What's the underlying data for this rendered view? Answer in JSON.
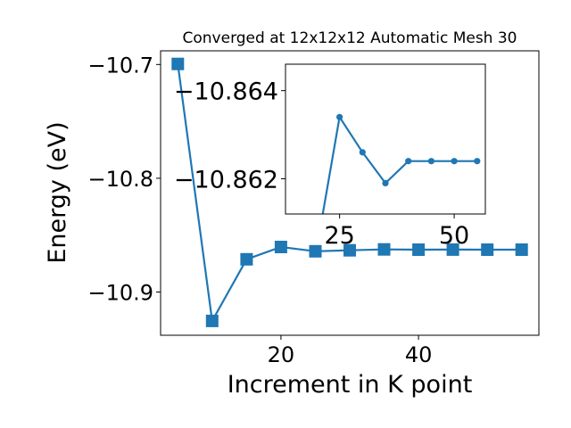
{
  "chart_data": [
    {
      "type": "line",
      "title": "Converged at 12x12x12 Automatic Mesh 30",
      "xlabel": "Increment in K point",
      "ylabel": "Energy (eV)",
      "xlim": [
        2.5,
        57.5
      ],
      "ylim": [
        -10.938,
        -10.688
      ],
      "xticks": [
        20,
        40
      ],
      "xtick_labels": [
        "20",
        "40"
      ],
      "yticks": [
        -10.9,
        -10.8,
        -10.7
      ],
      "ytick_labels": [
        "−10.9",
        "−10.8",
        "−10.7"
      ],
      "marker": "square",
      "color": "#1f77b4",
      "grid": false,
      "series": [
        {
          "x": [
            5,
            10,
            15,
            20,
            25,
            30,
            35,
            40,
            45,
            50,
            55
          ],
          "y": [
            -10.6995,
            -10.9254,
            -10.8712,
            -10.8604,
            -10.8642,
            -10.8633,
            -10.8625,
            -10.8628,
            -10.8627,
            -10.8628,
            -10.8628
          ]
        }
      ]
    },
    {
      "type": "line",
      "title": "",
      "xlabel": "",
      "ylabel": "",
      "xlim": [
        13.2,
        56.8
      ],
      "ylim": [
        -10.8612,
        -10.8646
      ],
      "xticks": [
        25,
        50
      ],
      "xtick_labels": [
        "25",
        "50"
      ],
      "yticks": [
        -10.864,
        -10.862
      ],
      "ytick_labels": [
        "−10.864",
        "−10.862"
      ],
      "marker": "circle",
      "color": "#1f77b4",
      "grid": false,
      "series": [
        {
          "x": [
            20,
            25,
            30,
            35,
            40,
            45,
            50,
            55
          ],
          "y": [
            -10.8604,
            -10.8634,
            -10.8626,
            -10.8619,
            -10.8624,
            -10.8624,
            -10.8624,
            -10.8624
          ]
        }
      ]
    }
  ]
}
